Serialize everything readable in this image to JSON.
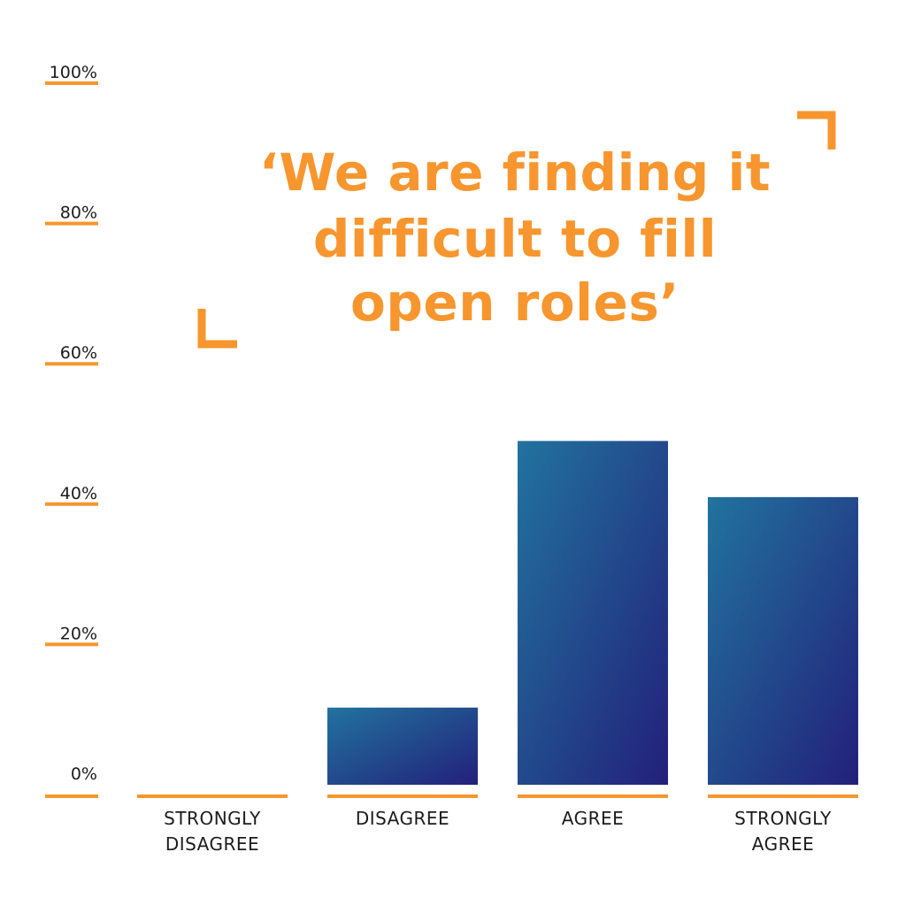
{
  "colors": {
    "accent": "#F7962E",
    "bar_gradient_start": "#21739E",
    "bar_gradient_end": "#23207A",
    "text": "#1c1c1c"
  },
  "chart_data": {
    "type": "bar",
    "title_lines": [
      "‘We are finding it",
      "difficult to fill",
      "open roles’"
    ],
    "categories": [
      [
        "STRONGLY",
        "DISAGREE"
      ],
      [
        "DISAGREE"
      ],
      [
        "AGREE"
      ],
      [
        "STRONGLY",
        "AGREE"
      ]
    ],
    "values": [
      0,
      11,
      49,
      41
    ],
    "ylim": [
      0,
      100
    ],
    "yticks": [
      0,
      20,
      40,
      60,
      80,
      100
    ],
    "ytick_labels": [
      "0%",
      "20%",
      "40%",
      "60%",
      "80%",
      "100%"
    ],
    "grid": false,
    "legend": "none"
  }
}
